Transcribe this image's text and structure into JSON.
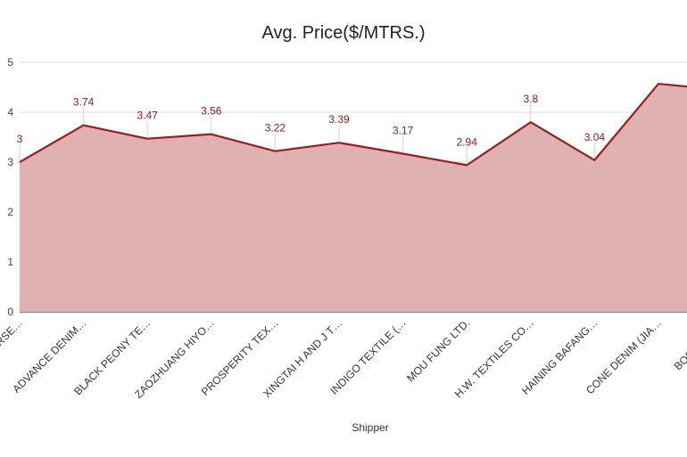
{
  "chart_data": {
    "type": "area",
    "title": "Avg. Price($/MTRS.)",
    "xlabel": "Shipper",
    "ylabel": "",
    "ylim": [
      0,
      5
    ],
    "yticks": [
      0,
      1,
      2,
      3,
      4,
      5
    ],
    "grid": true,
    "legend": "none",
    "categories": [
      "...RSE…",
      "ADVANCE DENIM…",
      "BLACK PEONY TE…",
      "ZAOZHUANG HIYO…",
      "PROSPERITY TEX…",
      "XINGTAI H AND J T…",
      "INDIGO TEXTILE (…",
      "MOU FUNG LTD.",
      "H.W. TEXTILES CO…",
      "HAINING BAFANG…",
      "CONE DENIM (JIA…",
      "BOSSA TIC…"
    ],
    "values": [
      3,
      3.74,
      3.47,
      3.56,
      3.22,
      3.39,
      3.17,
      2.94,
      3.8,
      3.04,
      4.57,
      4.45
    ],
    "data_labels": [
      "3",
      "3.74",
      "3.47",
      "3.56",
      "3.22",
      "3.39",
      "3.17",
      "2.94",
      "3.8",
      "3.04",
      "",
      ""
    ],
    "colors": {
      "line": "#9e1b1b",
      "fill": "#dfb1b1",
      "label": "#a31515",
      "grid": "#dddddd",
      "axis": "#333333"
    }
  }
}
